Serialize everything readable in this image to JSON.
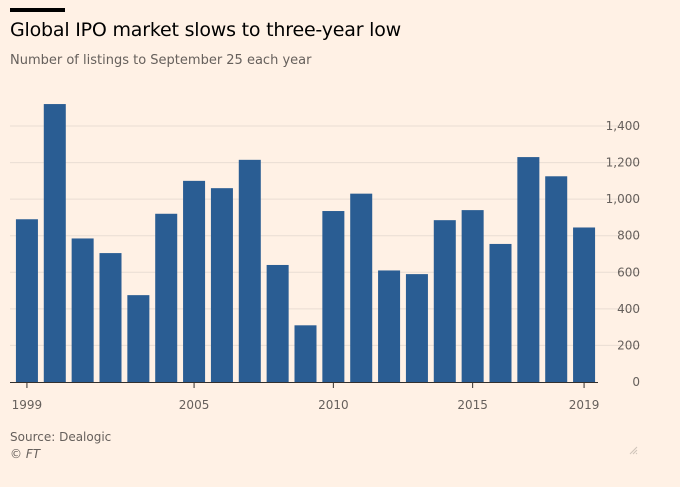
{
  "header": {
    "title": "Global IPO market slows to three-year low",
    "subtitle": "Number of listings to September 25 each year"
  },
  "footer": {
    "source": "Source: Dealogic",
    "copyright": "© FT"
  },
  "colors": {
    "background": "#fff1e5",
    "bar": "#2a5d93",
    "grid": "#e9ddd3",
    "axis": "#33302e",
    "text": "#66605c"
  },
  "chart_data": {
    "type": "bar",
    "title": "Global IPO market slows to three-year low",
    "subtitle": "Number of listings to September 25 each year",
    "xlabel": "",
    "ylabel": "",
    "categories": [
      1999,
      2000,
      2001,
      2002,
      2003,
      2004,
      2005,
      2006,
      2007,
      2008,
      2009,
      2010,
      2011,
      2012,
      2013,
      2014,
      2015,
      2016,
      2017,
      2018,
      2019
    ],
    "values": [
      890,
      1520,
      785,
      705,
      475,
      920,
      1100,
      1060,
      1215,
      640,
      310,
      935,
      1030,
      610,
      590,
      885,
      940,
      755,
      1230,
      1125,
      845
    ],
    "x_tick_labels": [
      "1999",
      "2005",
      "2010",
      "2015",
      "2019"
    ],
    "y_tick_labels": [
      "0",
      "200",
      "400",
      "600",
      "800",
      "1,000",
      "1,200",
      "1,400"
    ],
    "y_ticks": [
      0,
      200,
      400,
      600,
      800,
      1000,
      1200,
      1400
    ],
    "ylim": [
      0,
      1520
    ],
    "grid": true,
    "legend": "none",
    "source": "Dealogic"
  }
}
